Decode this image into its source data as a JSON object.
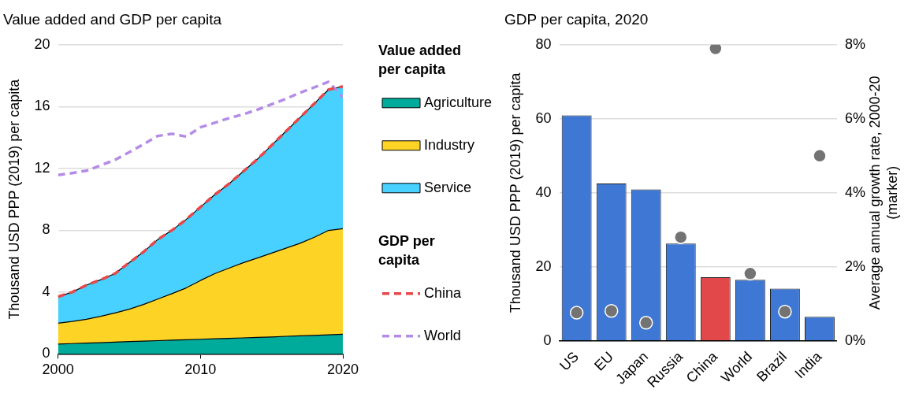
{
  "chart_data": [
    {
      "type": "area",
      "title": "Value added and GDP per capita",
      "ylabel": "Thousand USD PPP (2019) per capita",
      "legend_title": "Value added per capita",
      "annotations": [
        "GDP per capita"
      ],
      "x": [
        2000,
        2001,
        2002,
        2003,
        2004,
        2005,
        2006,
        2007,
        2008,
        2009,
        2010,
        2011,
        2012,
        2013,
        2014,
        2015,
        2016,
        2017,
        2018,
        2019,
        2020
      ],
      "stacked": true,
      "xlim": [
        2000,
        2020
      ],
      "xticks": [
        2000,
        2010,
        2020
      ],
      "ylim": [
        0,
        20
      ],
      "yticks": [
        0,
        4,
        8,
        12,
        16,
        20
      ],
      "grid": "y",
      "legend": "right",
      "marker": "none",
      "series": [
        {
          "name": "Agriculture",
          "type": "area",
          "color": "#00ab9c",
          "values": [
            0.64,
            0.67,
            0.7,
            0.73,
            0.77,
            0.8,
            0.83,
            0.86,
            0.89,
            0.92,
            0.95,
            0.98,
            1.01,
            1.04,
            1.07,
            1.1,
            1.14,
            1.17,
            1.2,
            1.24,
            1.27
          ]
        },
        {
          "name": "Industry",
          "type": "area",
          "color": "#fdd326",
          "values": [
            1.35,
            1.43,
            1.54,
            1.7,
            1.88,
            2.09,
            2.37,
            2.69,
            3.01,
            3.35,
            3.8,
            4.21,
            4.54,
            4.86,
            5.13,
            5.42,
            5.7,
            5.99,
            6.35,
            6.75,
            6.83
          ]
        },
        {
          "name": "Service",
          "type": "area",
          "color": "#48d0fe",
          "values": [
            1.71,
            1.9,
            2.21,
            2.37,
            2.55,
            3.01,
            3.4,
            3.85,
            4.1,
            4.43,
            4.75,
            5.11,
            5.45,
            5.9,
            6.4,
            6.98,
            7.56,
            8.14,
            8.65,
            9.11,
            9.2
          ]
        },
        {
          "name": "China",
          "type": "line",
          "line_style": "dashed",
          "color": "#e8474a",
          "values": [
            3.7,
            4.0,
            4.45,
            4.8,
            5.2,
            5.9,
            6.6,
            7.4,
            8.0,
            8.7,
            9.5,
            10.3,
            11.0,
            11.8,
            12.6,
            13.5,
            14.4,
            15.3,
            16.2,
            17.1,
            17.3
          ]
        },
        {
          "name": "World",
          "type": "line",
          "line_style": "dashed",
          "color": "#b48ce8",
          "values": [
            11.57,
            11.7,
            11.85,
            12.2,
            12.55,
            13.05,
            13.56,
            14.1,
            14.24,
            14.06,
            14.66,
            14.95,
            15.25,
            15.5,
            15.8,
            16.15,
            16.5,
            16.9,
            17.24,
            17.6,
            16.6
          ]
        }
      ]
    },
    {
      "type": "bar",
      "title": "GDP per capita, 2020",
      "ylabel": "Thousand USD PPP (2019) per capita",
      "y2label": "Average annual growth rate, 2000-20 (marker)",
      "categories": [
        "US",
        "EU",
        "Japan",
        "Russia",
        "China",
        "World",
        "Brazil",
        "India"
      ],
      "ylim": [
        0,
        80
      ],
      "yticks": [
        0,
        20,
        40,
        60,
        80
      ],
      "y2lim": [
        0,
        8
      ],
      "y2ticks": [
        {
          "value": 0,
          "label": "0%"
        },
        {
          "value": 2,
          "label": "2%"
        },
        {
          "value": 4,
          "label": "4%"
        },
        {
          "value": 6,
          "label": "6%"
        },
        {
          "value": 8,
          "label": "8%"
        }
      ],
      "grid": "y",
      "marker": "circle",
      "series": [
        {
          "type": "bar",
          "colors": [
            "#3e78d4",
            "#3e78d4",
            "#3e78d4",
            "#3e78d4",
            "#e2474a",
            "#3e78d4",
            "#3e78d4",
            "#3e78d4"
          ],
          "values": [
            60.9,
            42.5,
            40.9,
            26.3,
            17.2,
            16.5,
            14.1,
            6.5
          ]
        },
        {
          "type": "scatter",
          "axis": "y2",
          "color": "#737373",
          "x": [
            "US",
            "EU",
            "Japan",
            "Russia",
            "China",
            "World",
            "Brazil",
            "India"
          ],
          "values": [
            0.76,
            0.81,
            0.49,
            2.8,
            7.9,
            1.82,
            0.79,
            5.0
          ]
        }
      ]
    }
  ]
}
